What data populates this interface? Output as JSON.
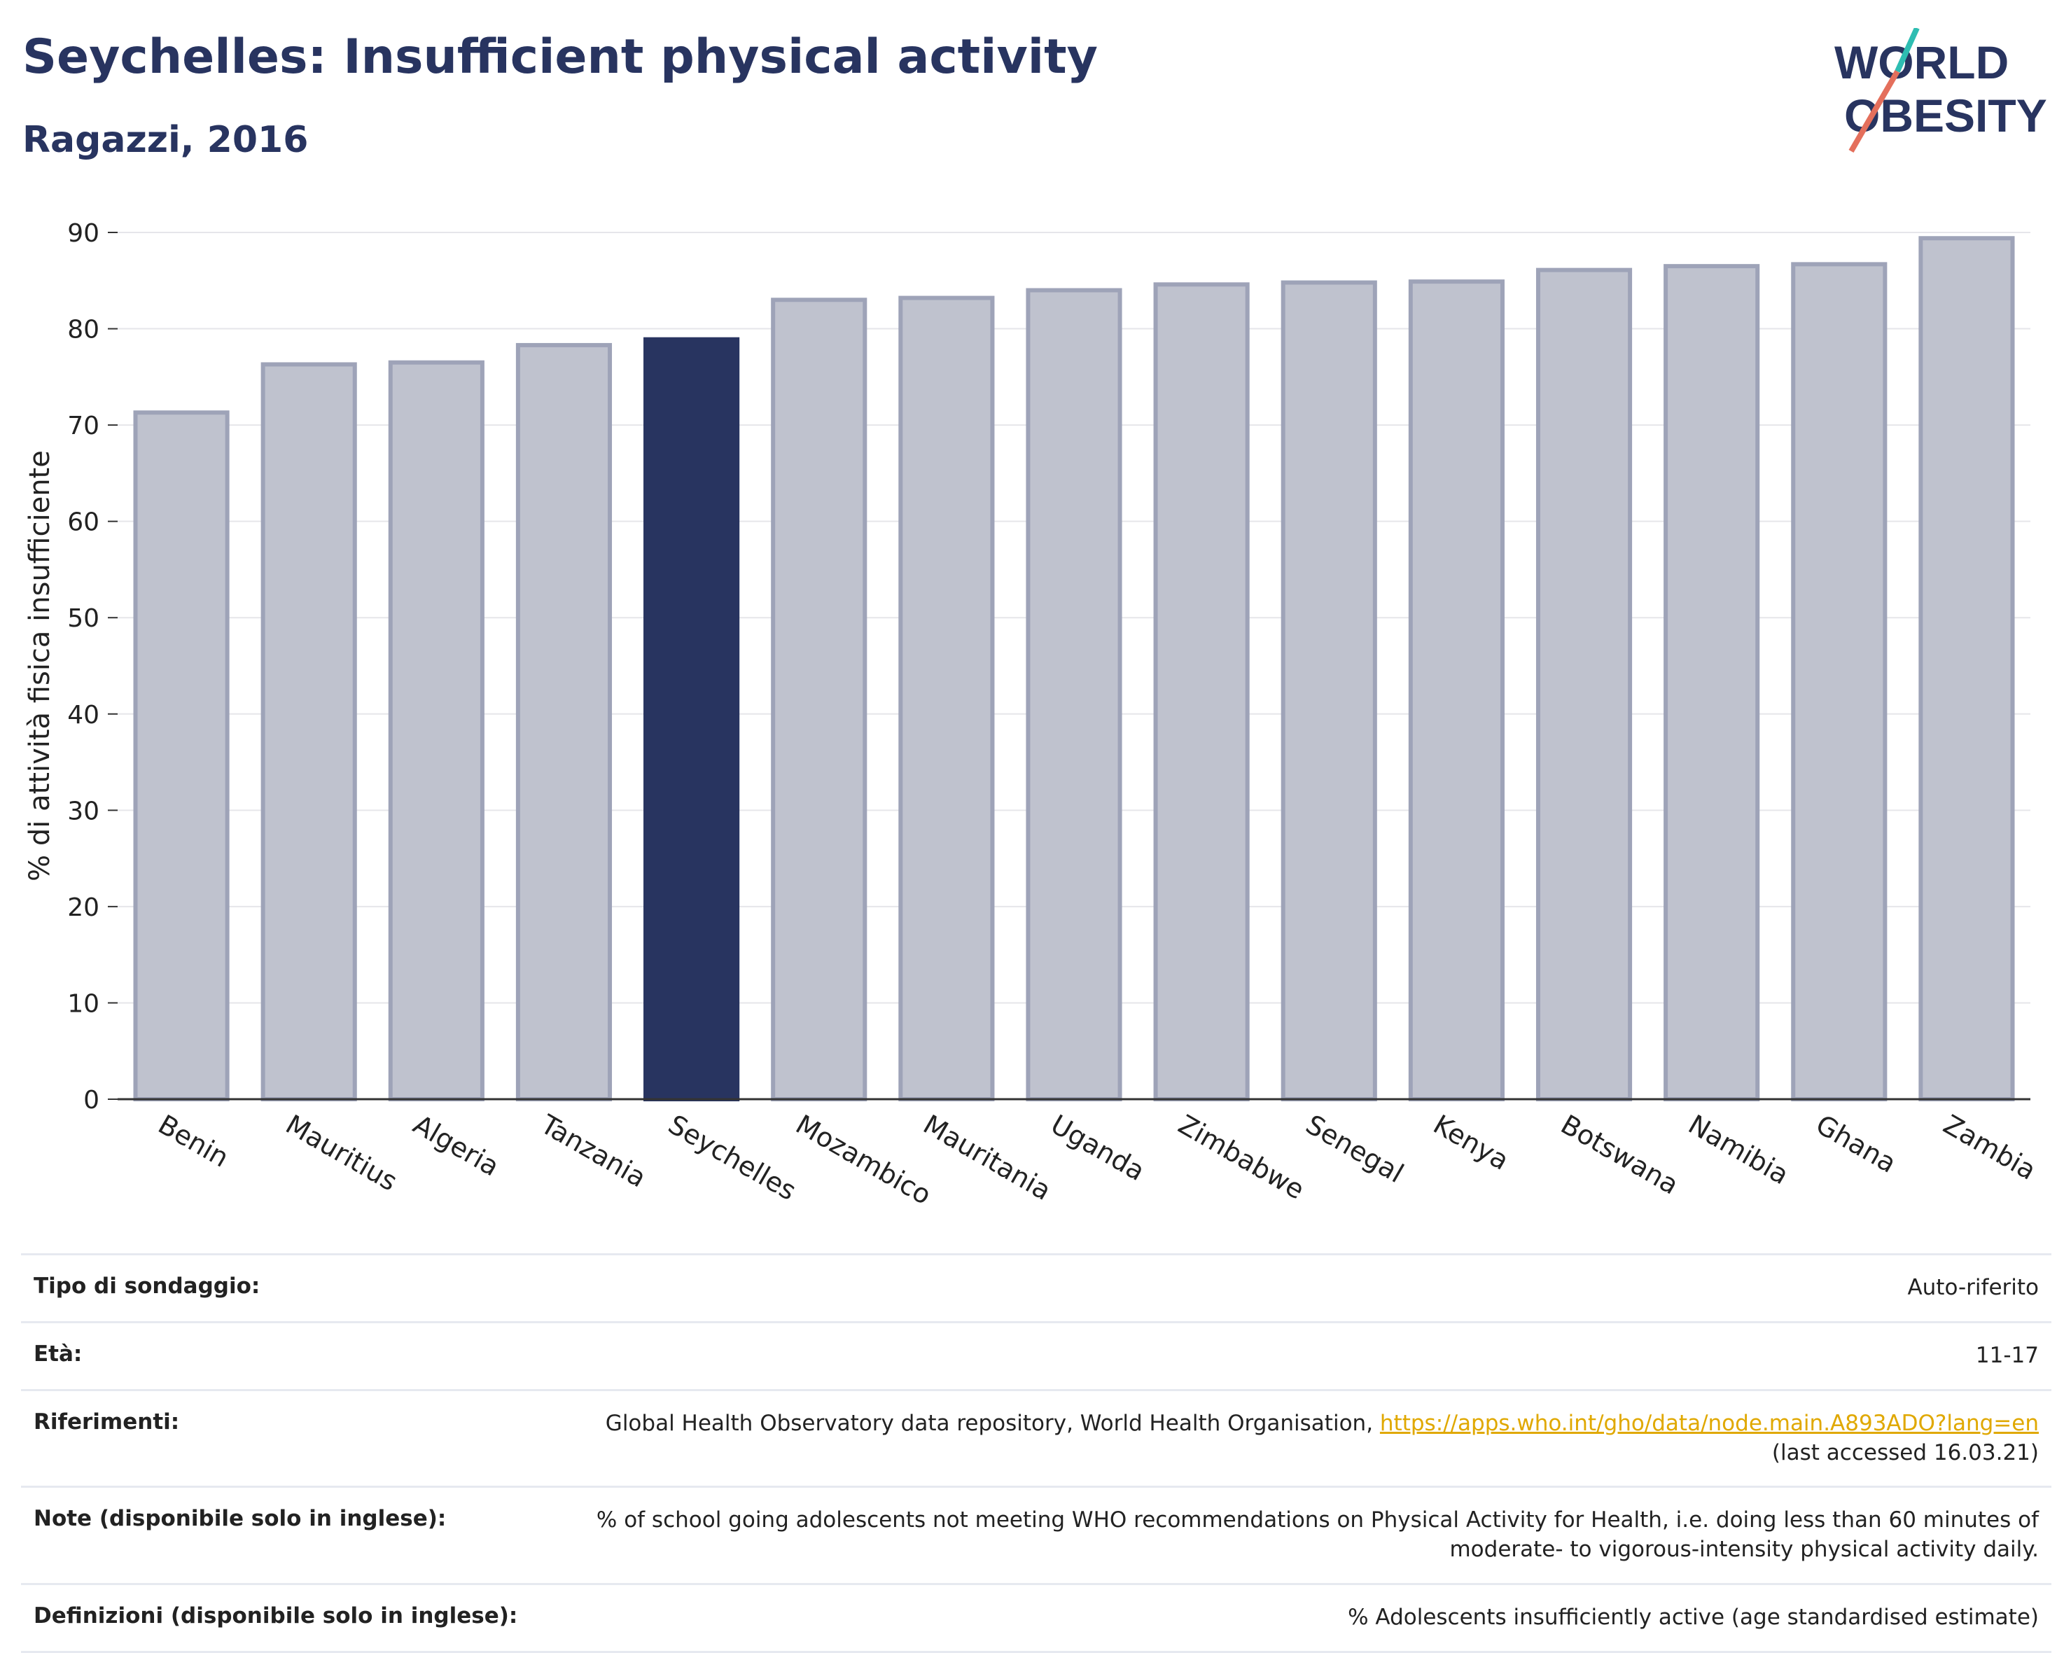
{
  "header": {
    "title": "Seychelles: Insufficient physical activity",
    "subtitle": "Ragazzi, 2016",
    "logo_line1": "WORLD",
    "logo_line2": "OBESITY"
  },
  "chart_data": {
    "type": "bar",
    "title": "Seychelles: Insufficient physical activity",
    "subtitle": "Ragazzi, 2016",
    "xlabel": "",
    "ylabel": "% di attività fisica insufficiente",
    "ylim": [
      0,
      90
    ],
    "yticks": [
      0,
      10,
      20,
      30,
      40,
      50,
      60,
      70,
      80,
      90
    ],
    "grid": true,
    "highlight": "Seychelles",
    "categories": [
      "Benin",
      "Mauritius",
      "Algeria",
      "Tanzania",
      "Seychelles",
      "Mozambico",
      "Mauritania",
      "Uganda",
      "Zimbabwe",
      "Senegal",
      "Kenya",
      "Botswana",
      "Namibia",
      "Ghana",
      "Zambia"
    ],
    "values": [
      71.3,
      76.3,
      76.5,
      78.3,
      78.9,
      83.0,
      83.2,
      84.0,
      84.6,
      84.8,
      84.9,
      86.1,
      86.5,
      86.7,
      89.4
    ],
    "colors": {
      "bar": "#bfc2ce",
      "bar_edge": "#9ea3b8",
      "highlight": "#283460",
      "axis": "#333333",
      "grid": "#e6e6ea"
    }
  },
  "info": {
    "rows": [
      {
        "label": "Tipo di sondaggio:",
        "value": "Auto-riferito"
      },
      {
        "label": "Età:",
        "value": "11-17"
      },
      {
        "label": "Riferimenti:",
        "value": "Global Health Observatory data repository, World Health Organisation,",
        "link": "https://apps.who.int/gho/data/node.main.A893ADO?lang=en",
        "value2": "(last accessed 16.03.21)"
      },
      {
        "label": "Note (disponibile solo in inglese):",
        "value": "% of school going adolescents not meeting WHO recommendations on Physical Activity for Health, i.e. doing less than 60 minutes of moderate- to vigorous-intensity physical activity daily."
      },
      {
        "label": "Definizioni (disponibile solo in inglese):",
        "value": "% Adolescents insufficiently active (age standardised estimate)"
      }
    ]
  }
}
